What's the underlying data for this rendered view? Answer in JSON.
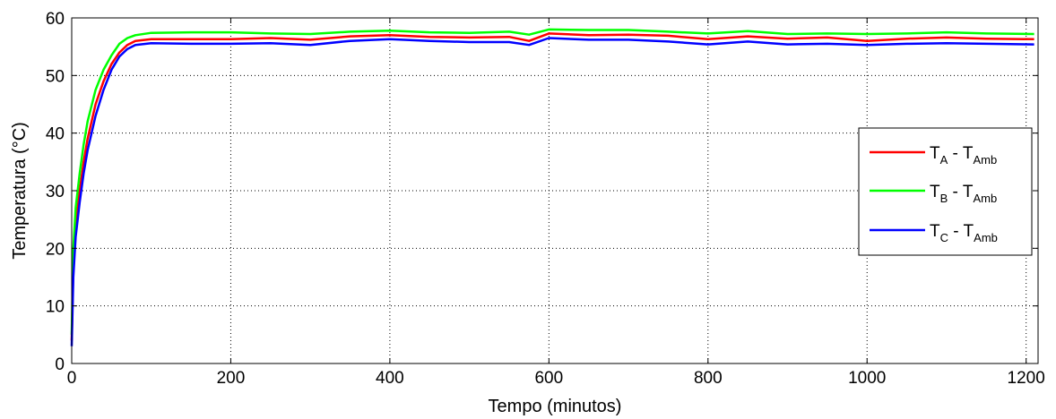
{
  "chart_data": {
    "type": "line",
    "xlabel": "Tempo (minutos)",
    "ylabel": "Temperatura (°C)",
    "xlim": [
      0,
      1215
    ],
    "ylim": [
      0,
      60
    ],
    "x_ticks": [
      0,
      200,
      400,
      600,
      800,
      1000,
      1200
    ],
    "y_ticks": [
      0,
      10,
      20,
      30,
      40,
      50,
      60
    ],
    "grid": true,
    "legend_position": "right",
    "series": [
      {
        "name_main": "T",
        "name_sub": "A",
        "name_sep": " - T",
        "name_sub2": "Amb",
        "color": "#ff0000",
        "x": [
          0,
          2,
          5,
          10,
          15,
          20,
          30,
          40,
          50,
          60,
          70,
          80,
          100,
          150,
          200,
          250,
          300,
          350,
          400,
          450,
          500,
          550,
          575,
          600,
          650,
          700,
          750,
          800,
          850,
          900,
          950,
          1000,
          1050,
          1100,
          1150,
          1210
        ],
        "y": [
          4,
          17,
          24,
          30,
          35,
          39,
          45,
          49,
          52,
          54,
          55.3,
          56,
          56.3,
          56.3,
          56.3,
          56.5,
          56.2,
          56.8,
          57,
          56.7,
          56.6,
          56.7,
          56,
          57.3,
          57,
          57.1,
          56.9,
          56.3,
          56.8,
          56.4,
          56.6,
          56,
          56.4,
          56.6,
          56.4,
          56.3
        ]
      },
      {
        "name_main": "T",
        "name_sub": "B",
        "name_sep": " - T",
        "name_sub2": "Amb",
        "color": "#00ff00",
        "x": [
          0,
          2,
          5,
          10,
          15,
          20,
          30,
          40,
          50,
          60,
          70,
          80,
          100,
          150,
          200,
          250,
          300,
          350,
          400,
          450,
          500,
          550,
          575,
          600,
          650,
          700,
          750,
          800,
          850,
          900,
          950,
          1000,
          1050,
          1100,
          1150,
          1210
        ],
        "y": [
          5,
          20,
          27,
          33,
          38,
          42,
          47.5,
          51,
          53.5,
          55.5,
          56.5,
          57,
          57.4,
          57.5,
          57.5,
          57.3,
          57.2,
          57.6,
          57.8,
          57.5,
          57.4,
          57.6,
          57.1,
          58,
          57.9,
          57.9,
          57.6,
          57.3,
          57.7,
          57.2,
          57.3,
          57.2,
          57.3,
          57.5,
          57.3,
          57.2
        ]
      },
      {
        "name_main": "T",
        "name_sub": "C",
        "name_sep": " - T",
        "name_sub2": "Amb",
        "color": "#0000ff",
        "x": [
          0,
          2,
          5,
          10,
          15,
          20,
          30,
          40,
          50,
          60,
          70,
          80,
          100,
          150,
          200,
          250,
          300,
          350,
          400,
          450,
          500,
          550,
          575,
          600,
          650,
          700,
          750,
          800,
          850,
          900,
          950,
          1000,
          1050,
          1100,
          1150,
          1210
        ],
        "y": [
          3,
          15,
          22,
          28,
          33,
          37,
          43,
          47.5,
          51,
          53.3,
          54.6,
          55.3,
          55.6,
          55.5,
          55.5,
          55.6,
          55.3,
          56,
          56.3,
          56,
          55.8,
          55.8,
          55.3,
          56.5,
          56.2,
          56.2,
          55.9,
          55.4,
          55.9,
          55.4,
          55.5,
          55.3,
          55.5,
          55.6,
          55.5,
          55.4
        ]
      }
    ]
  }
}
